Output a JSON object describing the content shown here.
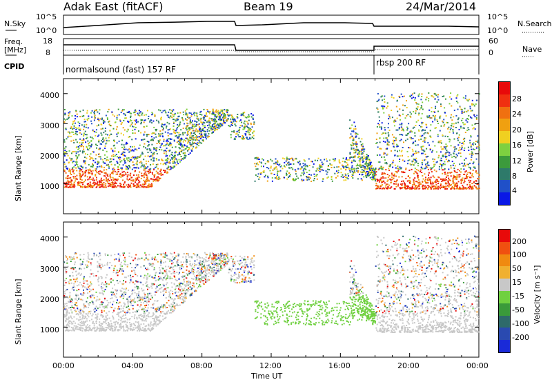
{
  "header": {
    "station": "Adak East (fitACF)",
    "beam": "Beam 19",
    "date": "24/Mar/2014"
  },
  "top_panels": {
    "nsky_label": "N.Sky",
    "nsky_ticks": [
      "10^5",
      "10^0"
    ],
    "nsearch_label": "N.Search",
    "nsearch_ticks": [
      "10^5",
      "10^0"
    ],
    "freq_label": "Freq.",
    "freq_unit": "[MHz]",
    "freq_ticks": [
      "18",
      "8"
    ],
    "nave_label": "Nave",
    "nave_ticks": [
      "60",
      "0"
    ],
    "cpid_label": "CPID",
    "cpid_segments": [
      "normalsound (fast) 157 RF",
      "rbsp 200 RF"
    ]
  },
  "colors": {
    "power_scale": [
      "#0a18e6",
      "#2050c8",
      "#2e7a6a",
      "#3c9a3c",
      "#7ed040",
      "#f0d020",
      "#f0a010",
      "#f07010",
      "#f03010",
      "#e80a0a"
    ],
    "velocity_scale": [
      "#1a2ad8",
      "#2a4ab0",
      "#2e6a6a",
      "#3a9a3a",
      "#70d040",
      "#c8c8c8",
      "#f0b030",
      "#f08a10",
      "#f05010",
      "#e80a0a"
    ]
  },
  "chart_data": [
    {
      "type": "heatmap",
      "title": "",
      "xlabel": "Time UT",
      "ylabel": "Slant Range [km]",
      "xticks": [
        "00:00",
        "04:00",
        "08:00",
        "12:00",
        "16:00",
        "20:00",
        "00:00"
      ],
      "yticks": [
        "1000",
        "2000",
        "3000",
        "4000"
      ],
      "ylim": [
        0,
        4500
      ],
      "colorbar": {
        "label": "Power [dB]",
        "ticks": [
          "28",
          "24",
          "20",
          "16",
          "12",
          "8",
          "4"
        ],
        "range": [
          0,
          32
        ]
      }
    },
    {
      "type": "heatmap",
      "title": "",
      "xlabel": "Time UT",
      "ylabel": "Slant Range [km]",
      "xticks": [
        "00:00",
        "04:00",
        "08:00",
        "12:00",
        "16:00",
        "20:00",
        "00:00"
      ],
      "yticks": [
        "1000",
        "2000",
        "3000",
        "4000"
      ],
      "ylim": [
        0,
        4500
      ],
      "colorbar": {
        "label": "Velocity [m s⁻¹]",
        "ticks": [
          "200",
          "100",
          "50",
          "15",
          "-15",
          "-50",
          "-100",
          "-200"
        ],
        "range": [
          -250,
          250
        ]
      }
    }
  ]
}
